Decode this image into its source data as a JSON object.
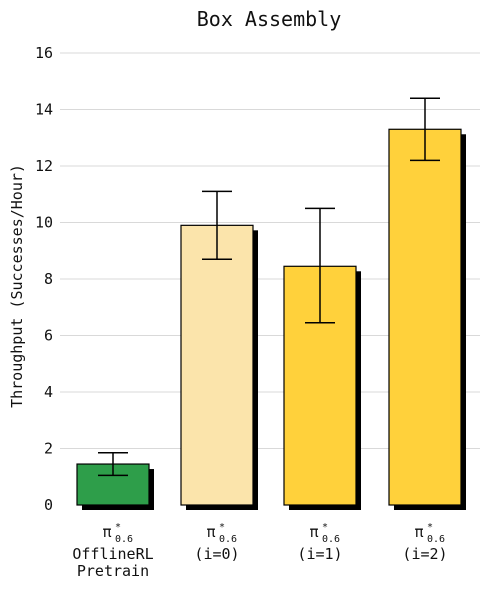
{
  "chart_data": {
    "type": "bar",
    "title": "Box Assembly",
    "ylabel": "Throughput (Successes/Hour)",
    "xlabel": "",
    "ylim": [
      0,
      16
    ],
    "yticks": [
      0,
      2,
      4,
      6,
      8,
      10,
      12,
      14,
      16
    ],
    "grid": true,
    "categories": [
      {
        "symbol": "π",
        "sup": "*",
        "sub": "0.6",
        "lines": [
          "OfflineRL",
          "Pretrain"
        ]
      },
      {
        "symbol": "π",
        "sup": "*",
        "sub": "0.6",
        "lines": [
          "(i=0)"
        ]
      },
      {
        "symbol": "π",
        "sup": "*",
        "sub": "0.6",
        "lines": [
          "(i=1)"
        ]
      },
      {
        "symbol": "π",
        "sup": "*",
        "sub": "0.6",
        "lines": [
          "(i=2)"
        ]
      }
    ],
    "values": [
      1.45,
      9.9,
      8.45,
      13.3
    ],
    "error_low": [
      1.05,
      8.7,
      6.45,
      12.2
    ],
    "error_high": [
      1.85,
      11.1,
      10.5,
      14.4
    ],
    "colors": [
      "#2e9e4a",
      "#fbe4ab",
      "#ffd13b",
      "#ffd13b"
    ]
  }
}
